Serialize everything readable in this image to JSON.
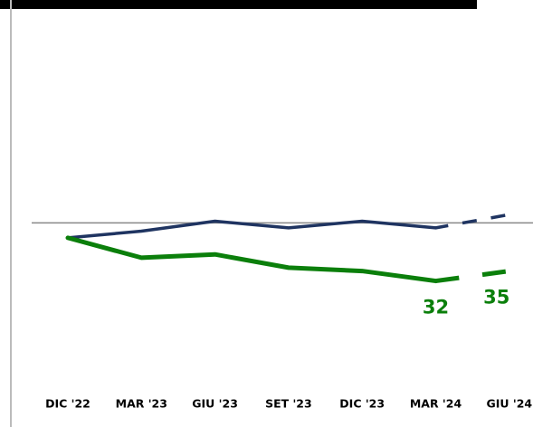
{
  "chart_data": {
    "type": "line",
    "categories": [
      "DIC '22",
      "MAR '23",
      "GIU '23",
      "SET '23",
      "DIC '23",
      "MAR '24",
      "GIU '24"
    ],
    "series": [
      {
        "color": "#1f3461",
        "values": [
          45,
          47,
          50,
          48,
          50,
          48,
          52
        ]
      },
      {
        "color": "#0b7f0b",
        "values": [
          45,
          39,
          40,
          36,
          35,
          32,
          35
        ],
        "value_labels": [
          null,
          null,
          null,
          null,
          null,
          "32",
          "35"
        ]
      }
    ],
    "ylim": [
      0,
      115
    ],
    "reference_line": 49.5,
    "last_segment_dashed": true
  }
}
